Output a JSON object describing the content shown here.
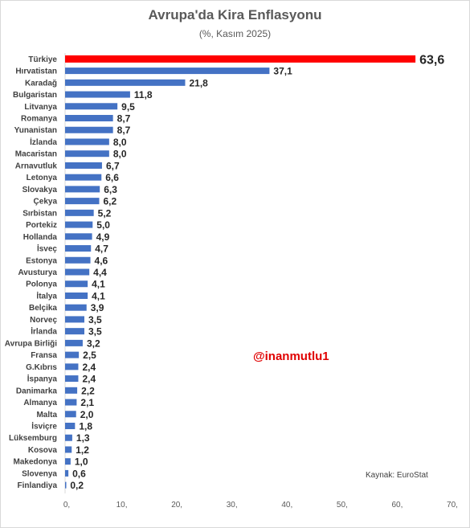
{
  "chart_data": {
    "type": "bar",
    "orientation": "horizontal",
    "title": "Avrupa'da Kira Enflasyonu",
    "subtitle": "(%, Kasım 2025)",
    "categories": [
      "Türkiye",
      "Hırvatistan",
      "Karadağ",
      "Bulgaristan",
      "Litvanya",
      "Romanya",
      "Yunanistan",
      "İzlanda",
      "Macaristan",
      "Arnavutluk",
      "Letonya",
      "Slovakya",
      "Çekya",
      "Sırbistan",
      "Portekiz",
      "Hollanda",
      "İsveç",
      "Estonya",
      "Avusturya",
      "Polonya",
      "İtalya",
      "Belçika",
      "Norveç",
      "İrlanda",
      "Avrupa Birliği",
      "Fransa",
      "G.Kıbrıs",
      "İspanya",
      "Danimarka",
      "Almanya",
      "Malta",
      "İsviçre",
      "Lüksemburg",
      "Kosova",
      "Makedonya",
      "Slovenya",
      "Finlandiya"
    ],
    "values": [
      63.6,
      37.1,
      21.8,
      11.8,
      9.5,
      8.7,
      8.7,
      8.0,
      8.0,
      6.7,
      6.6,
      6.3,
      6.2,
      5.2,
      5.0,
      4.9,
      4.7,
      4.6,
      4.4,
      4.1,
      4.1,
      3.9,
      3.5,
      3.5,
      3.2,
      2.5,
      2.4,
      2.4,
      2.2,
      2.1,
      2.0,
      1.8,
      1.3,
      1.2,
      1.0,
      0.6,
      0.2
    ],
    "value_labels": [
      "63,6",
      "37,1",
      "21,8",
      "11,8",
      "9,5",
      "8,7",
      "8,7",
      "8,0",
      "8,0",
      "6,7",
      "6,6",
      "6,3",
      "6,2",
      "5,2",
      "5,0",
      "4,9",
      "4,7",
      "4,6",
      "4,4",
      "4,1",
      "4,1",
      "3,9",
      "3,5",
      "3,5",
      "3,2",
      "2,5",
      "2,4",
      "2,4",
      "2,2",
      "2,1",
      "2,0",
      "1,8",
      "1,3",
      "1,2",
      "1,0",
      "0,6",
      "0,2"
    ],
    "xlim": [
      0,
      70
    ],
    "xticks": [
      "0,",
      "10,",
      "20,",
      "30,",
      "40,",
      "50,",
      "60,",
      "70,"
    ],
    "highlight": {
      "Türkiye": "#ff0000",
      "Avrupa Birliği": "#4472c4"
    },
    "bar_color": "#4472c4",
    "highlight_label_color": "#e00000",
    "eu_label_color": "#2f5597",
    "grid": false
  },
  "watermark": "@inanmutlu1",
  "source": "Kaynak: EuroStat"
}
